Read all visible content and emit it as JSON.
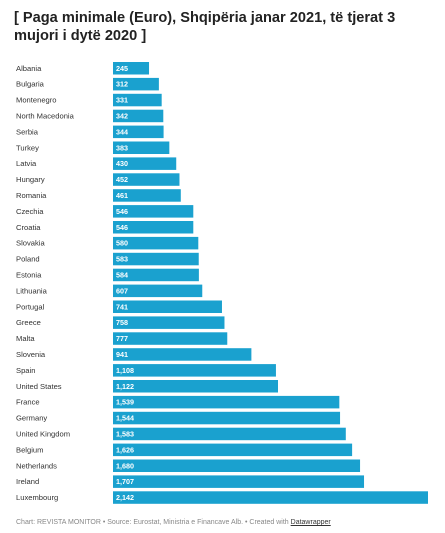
{
  "title": "[ Paga minimale (Euro), Shqipëria janar 2021, të tjerat 3 mujori i dytë 2020 ]",
  "footer": {
    "text": "Chart: REVISTA MONITOR • Source: Eurostat, Ministria e Financave Alb. • Created with ",
    "brand": "Datawrapper"
  },
  "colors": {
    "bar": "#1aa1cf",
    "value_text": "#ffffff",
    "label_text": "#333333"
  },
  "chart_data": {
    "type": "bar",
    "orientation": "horizontal",
    "title": "[ Paga minimale (Euro), Shqipëria janar 2021, të tjerat 3 mujori i dytë 2020 ]",
    "categories": [
      "Albania",
      "Bulgaria",
      "Montenegro",
      "North Macedonia",
      "Serbia",
      "Turkey",
      "Latvia",
      "Hungary",
      "Romania",
      "Czechia",
      "Croatia",
      "Slovakia",
      "Poland",
      "Estonia",
      "Lithuania",
      "Portugal",
      "Greece",
      "Malta",
      "Slovenia",
      "Spain",
      "United States",
      "France",
      "Germany",
      "United Kingdom",
      "Belgium",
      "Netherlands",
      "Ireland",
      "Luxembourg"
    ],
    "values": [
      245,
      312,
      331,
      342,
      344,
      383,
      430,
      452,
      461,
      546,
      546,
      580,
      583,
      584,
      607,
      741,
      758,
      777,
      941,
      1108,
      1122,
      1539,
      1544,
      1583,
      1626,
      1680,
      1707,
      2142
    ],
    "value_labels": [
      "245",
      "312",
      "331",
      "342",
      "344",
      "383",
      "430",
      "452",
      "461",
      "546",
      "546",
      "580",
      "583",
      "584",
      "607",
      "741",
      "758",
      "777",
      "941",
      "1,108",
      "1,122",
      "1,539",
      "1,544",
      "1,583",
      "1,626",
      "1,680",
      "1,707",
      "2,142"
    ],
    "xlim": [
      0,
      2142
    ],
    "grid": false,
    "legend": "none"
  }
}
